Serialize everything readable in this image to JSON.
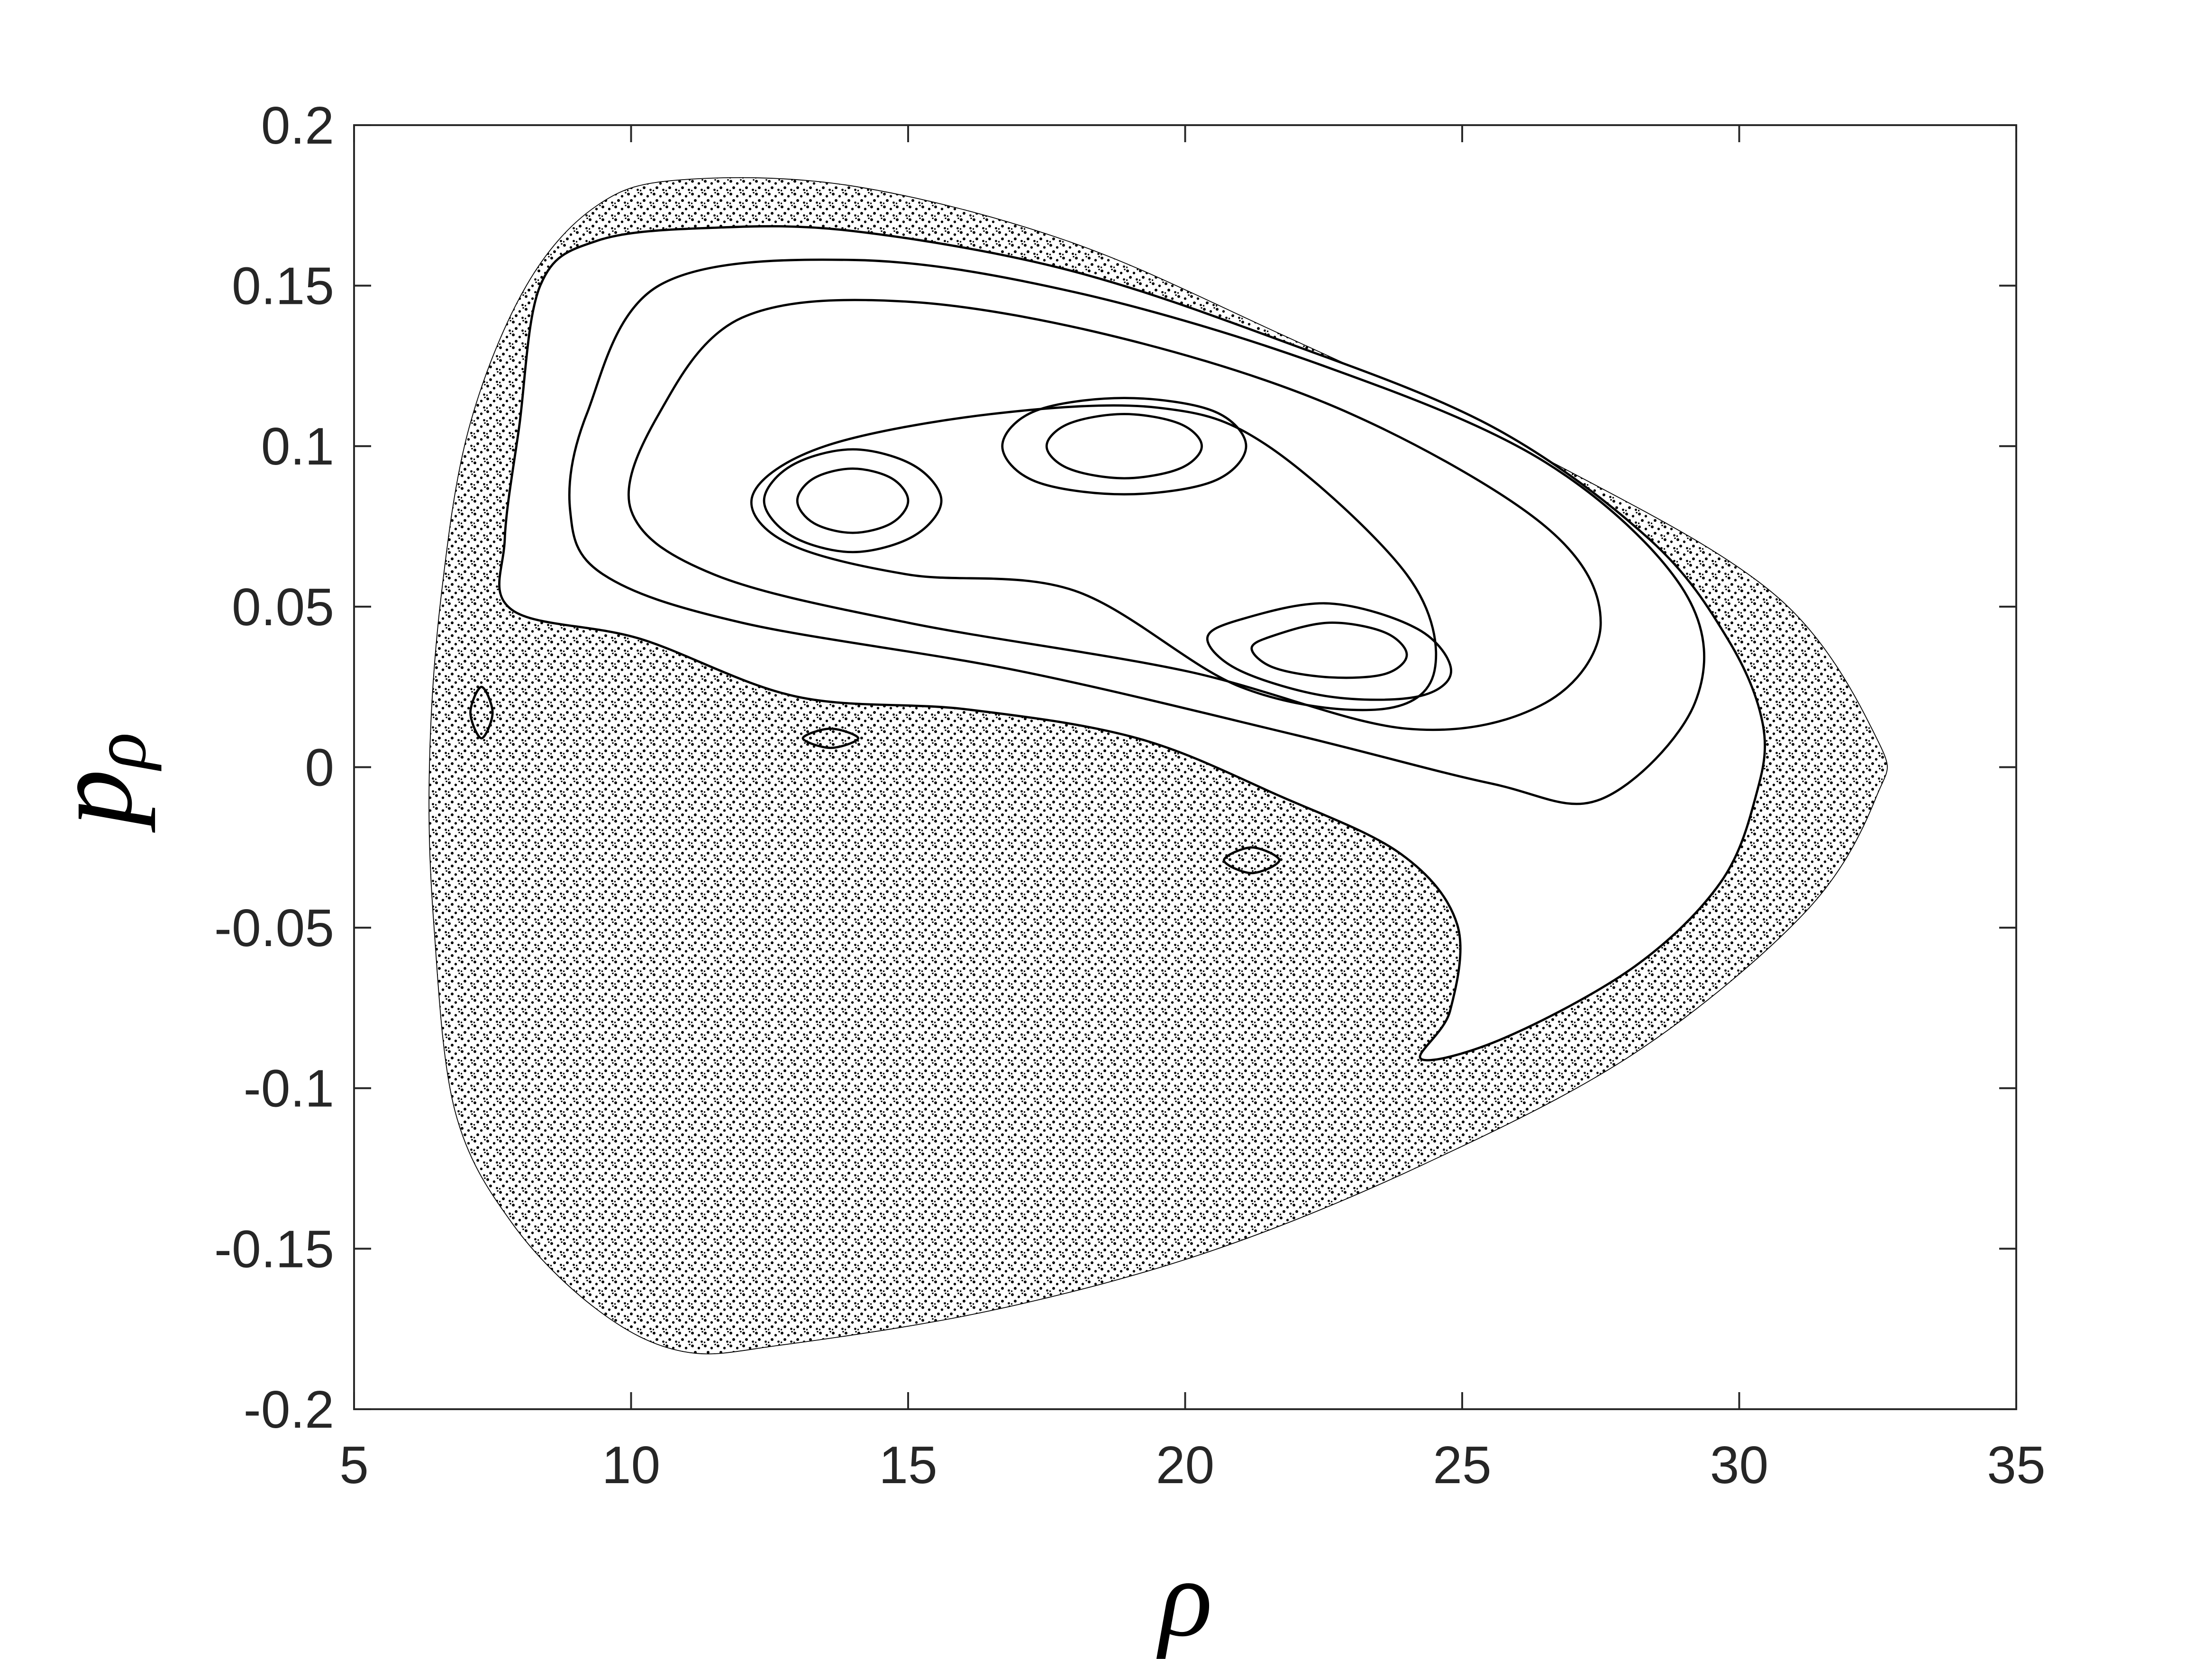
{
  "chart_data": {
    "type": "line",
    "xlabel": "ρ",
    "ylabel": {
      "main": "p",
      "subscript": "ρ"
    },
    "xlim": [
      5,
      35
    ],
    "xticks": [
      5,
      10,
      15,
      20,
      25,
      30,
      35
    ],
    "ylim": [
      -0.2,
      0.2
    ],
    "yticks": [
      -0.2,
      -0.15,
      -0.1,
      -0.05,
      0,
      0.05,
      0.1,
      0.15,
      0.2
    ],
    "grid": false,
    "closed": true,
    "series": [
      {
        "color": "#000000",
        "fill": "stipple",
        "x": [
          10.93,
          14.01,
          17.86,
          21.71,
          26.84,
          30.69,
          32.48,
          32.48,
          31.2,
          28.12,
          24.27,
          20.42,
          16.57,
          12.72,
          10.93,
          9.39,
          7.85,
          6.82,
          6.44,
          6.36,
          6.57,
          7.08,
          8.11,
          9.39
        ],
        "y": [
          0.183,
          0.181,
          0.164,
          0.135,
          0.093,
          0.053,
          0.009,
          -0.009,
          -0.045,
          -0.089,
          -0.124,
          -0.151,
          -0.169,
          -0.18,
          -0.182,
          -0.169,
          -0.142,
          -0.107,
          -0.049,
          0,
          0.053,
          0.106,
          0.15,
          0.175
        ]
      },
      {
        "color": "#000000",
        "fill": "#ffffff",
        "x": [
          7.98,
          8.36,
          9.39,
          11.44,
          14.01,
          17.86,
          21.71,
          25.55,
          28.38,
          29.79,
          30.43,
          30.3,
          29.66,
          28.12,
          25.81,
          24.27,
          24.78,
          24.91,
          23.89,
          21.71,
          19.14,
          16.06,
          12.98,
          10.16,
          7.85,
          7.72
        ],
        "y": [
          0.106,
          0.15,
          0.164,
          0.168,
          0.167,
          0.155,
          0.133,
          0.106,
          0.071,
          0.04,
          0.013,
          -0.009,
          -0.036,
          -0.062,
          -0.084,
          -0.091,
          -0.076,
          -0.049,
          -0.027,
          -0.009,
          0.009,
          0.018,
          0.022,
          0.04,
          0.049,
          0.071
        ]
      },
      {
        "color": "#000000",
        "x": [
          9.2,
          10.5,
          14,
          18,
          22.5,
          26.5,
          29,
          29.2,
          27.5,
          25.5,
          22,
          17,
          12,
          9.5,
          8.9
        ],
        "y": [
          0.11,
          0.15,
          0.158,
          0.148,
          0.125,
          0.095,
          0.055,
          0.02,
          -0.01,
          -0.005,
          0.01,
          0.03,
          0.045,
          0.06,
          0.08
        ]
      },
      {
        "color": "#000000",
        "x": [
          10.5,
          12,
          15,
          19,
          23,
          26.5,
          27.5,
          26.5,
          24,
          20,
          15,
          11.5,
          10
        ],
        "y": [
          0.11,
          0.14,
          0.145,
          0.133,
          0.11,
          0.075,
          0.045,
          0.02,
          0.012,
          0.03,
          0.045,
          0.06,
          0.08
        ]
      },
      {
        "color": "#000000",
        "x": [
          12.2,
          13.5,
          16.5,
          19.5,
          21.5,
          24,
          24.5,
          23.5,
          21,
          18,
          15,
          12.8
        ],
        "y": [
          0.085,
          0.1,
          0.11,
          0.112,
          0.1,
          0.06,
          0.03,
          0.018,
          0.025,
          0.055,
          0.06,
          0.07
        ]
      },
      {
        "color": "#000000",
        "x": [
          15.6,
          15.1,
          14,
          12.9,
          12.4,
          12.9,
          14,
          15.1
        ],
        "y": [
          0.083,
          0.094,
          0.099,
          0.094,
          0.083,
          0.072,
          0.067,
          0.072
        ]
      },
      {
        "color": "#000000",
        "x": [
          15,
          14.7,
          14,
          13.3,
          13,
          13.3,
          14,
          14.7
        ],
        "y": [
          0.083,
          0.09,
          0.093,
          0.09,
          0.083,
          0.076,
          0.073,
          0.076
        ]
      },
      {
        "color": "#000000",
        "x": [
          21.1,
          20.5,
          18.9,
          17.3,
          16.7,
          17.3,
          18.9,
          20.5
        ],
        "y": [
          0.1,
          0.111,
          0.115,
          0.111,
          0.1,
          0.089,
          0.085,
          0.089
        ]
      },
      {
        "color": "#000000",
        "x": [
          20.3,
          19.9,
          18.9,
          17.9,
          17.5,
          17.9,
          18.9,
          19.9
        ],
        "y": [
          0.1,
          0.107,
          0.11,
          0.107,
          0.1,
          0.093,
          0.09,
          0.093
        ]
      },
      {
        "color": "#000000",
        "x": [
          24.8,
          24.2,
          22.6,
          21,
          20.4,
          21,
          22.6,
          24.2
        ],
        "y": [
          0.03,
          0.043,
          0.051,
          0.046,
          0.04,
          0.03,
          0.022,
          0.022
        ]
      },
      {
        "color": "#000000",
        "x": [
          24,
          23.6,
          22.6,
          21.6,
          21.2,
          21.6,
          22.6,
          23.6
        ],
        "y": [
          0.035,
          0.042,
          0.045,
          0.041,
          0.037,
          0.031,
          0.028,
          0.029
        ]
      },
      {
        "color": "#000000",
        "x": [
          21.7,
          21.2,
          20.7,
          21.2
        ],
        "y": [
          -0.029,
          -0.025,
          -0.029,
          -0.033
        ]
      },
      {
        "color": "#000000",
        "x": [
          14.1,
          13.6,
          13.1,
          13.6
        ],
        "y": [
          0.009,
          0.012,
          0.009,
          0.006
        ]
      },
      {
        "color": "#000000",
        "x": [
          7.5,
          7.3,
          7.1,
          7.3
        ],
        "y": [
          0.017,
          0.025,
          0.017,
          0.009
        ]
      }
    ]
  }
}
